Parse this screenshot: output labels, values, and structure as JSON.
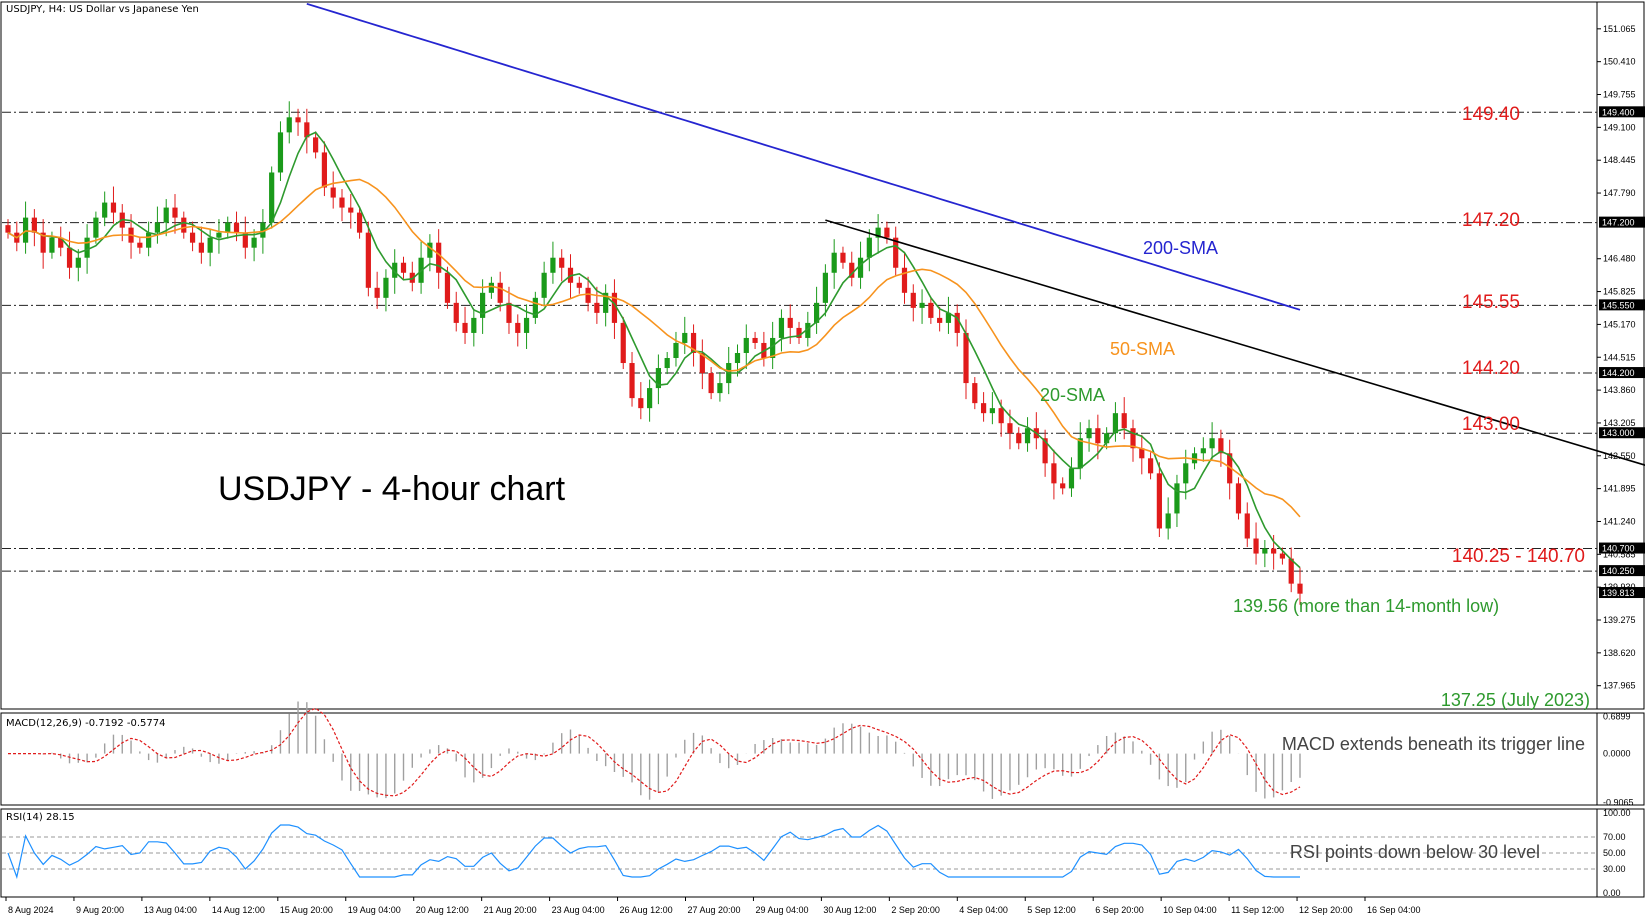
{
  "chart_data": {
    "type": "candlestick",
    "title": "USDJPY - 4-hour chart",
    "header": "USDJPY, H4:  US Dollar vs Japanese Yen",
    "colors": {
      "bull": "#1a9a1a",
      "bear": "#e01b1b",
      "sma20": "#2e9a2e",
      "sma50": "#f7931e",
      "sma200": "#2525d0",
      "trendline": "#000000",
      "annotation_red": "#e01b1b",
      "annotation_green": "#2e9a2e",
      "rsi_line": "#1e90ff",
      "macd_hist": "#a0a0a0",
      "macd_signal": "#e01b1b"
    },
    "price_axis": {
      "ylim": [
        137.5,
        151.6
      ],
      "ticks": [
        "151.065",
        "150.410",
        "149.755",
        "149.100",
        "148.445",
        "147.790",
        "146.480",
        "145.825",
        "145.170",
        "144.515",
        "143.860",
        "143.205",
        "142.550",
        "141.895",
        "141.240",
        "140.585",
        "139.930",
        "139.275",
        "138.620",
        "137.965"
      ],
      "highlight_ticks": [
        "149.400",
        "147.200",
        "145.550",
        "144.200",
        "143.000",
        "140.700",
        "140.250",
        "139.813"
      ]
    },
    "levels": [
      {
        "value": 149.4,
        "label": "149.40"
      },
      {
        "value": 147.2,
        "label": "147.20"
      },
      {
        "value": 145.55,
        "label": "145.55"
      },
      {
        "value": 144.2,
        "label": "144.20"
      },
      {
        "value": 143.0,
        "label": "143.00"
      },
      {
        "value": 140.7,
        "label": ""
      },
      {
        "value": 140.25,
        "label": ""
      }
    ],
    "zone_label": "140.25 - 140.70",
    "low_label": "139.56 (more than 14-month low)",
    "target_label": "137.25 (July 2023)",
    "sma_labels": {
      "sma200": "200-SMA",
      "sma50": "50-SMA",
      "sma20": "20-SMA"
    },
    "trendline": {
      "from": [
        93,
        147.25
      ],
      "to": [
        218,
        140.7
      ]
    },
    "close_series": [
      147.0,
      146.8,
      147.3,
      147.0,
      146.6,
      146.9,
      146.7,
      146.3,
      146.5,
      146.9,
      147.3,
      147.6,
      147.4,
      147.1,
      146.8,
      146.7,
      147.0,
      147.2,
      147.5,
      147.3,
      147.0,
      146.8,
      146.6,
      146.9,
      147.0,
      147.2,
      147.0,
      146.7,
      146.9,
      147.2,
      148.2,
      149.0,
      149.3,
      149.2,
      148.9,
      148.6,
      147.9,
      147.7,
      147.5,
      147.4,
      147.0,
      145.9,
      145.7,
      146.1,
      146.4,
      146.2,
      146.0,
      146.5,
      146.8,
      146.2,
      145.6,
      145.2,
      145.0,
      145.3,
      145.8,
      146.0,
      145.6,
      145.2,
      145.0,
      145.3,
      145.7,
      146.2,
      146.5,
      146.3,
      146.0,
      145.9,
      145.6,
      145.4,
      145.8,
      145.2,
      144.4,
      143.7,
      143.5,
      143.9,
      144.3,
      144.5,
      144.8,
      145.0,
      144.6,
      144.2,
      143.8,
      144.0,
      144.4,
      144.6,
      144.9,
      144.8,
      144.5,
      144.9,
      145.3,
      145.1,
      144.9,
      145.2,
      145.6,
      146.2,
      146.6,
      146.4,
      146.1,
      146.5,
      146.9,
      147.1,
      146.9,
      146.3,
      145.8,
      145.5,
      145.6,
      145.3,
      145.2,
      145.4,
      145.0,
      144.0,
      143.6,
      143.4,
      143.5,
      143.2,
      143.0,
      142.8,
      143.1,
      142.9,
      142.4,
      142.0,
      141.9,
      142.3,
      142.9,
      143.1,
      142.8,
      143.0,
      143.4,
      143.1,
      142.7,
      142.5,
      142.2,
      141.1,
      141.4,
      142.0,
      142.4,
      142.6,
      142.7,
      142.9,
      142.6,
      142.0,
      141.4,
      140.9,
      140.6,
      140.7,
      140.6,
      140.5,
      140.0,
      139.8
    ],
    "x_labels": [
      "8 Aug 2024",
      "9 Aug 20:00",
      "13 Aug 04:00",
      "14 Aug 12:00",
      "15 Aug 20:00",
      "19 Aug 04:00",
      "20 Aug 12:00",
      "21 Aug 20:00",
      "23 Aug 04:00",
      "26 Aug 12:00",
      "27 Aug 20:00",
      "29 Aug 04:00",
      "30 Aug 12:00",
      "2 Sep 20:00",
      "4 Sep 04:00",
      "5 Sep 12:00",
      "6 Sep 20:00",
      "10 Sep 04:00",
      "11 Sep 12:00",
      "12 Sep 20:00",
      "16 Sep 04:00"
    ],
    "macd": {
      "header": "MACD(12,26,9) -0.7192 -0.5774",
      "annotation": "MACD extends beneath its trigger line",
      "ticks": [
        "0.6899",
        "0.0000",
        "-0.9065"
      ],
      "ylim": [
        -0.95,
        0.75
      ]
    },
    "rsi": {
      "header": "RSI(14) 28.15",
      "annotation": "RSI points down below 30 level",
      "ticks": [
        "100.00",
        "70.00",
        "50.00",
        "30.00",
        "0.00"
      ],
      "ylim": [
        0,
        100
      ],
      "levels": [
        70,
        50,
        30
      ]
    }
  }
}
